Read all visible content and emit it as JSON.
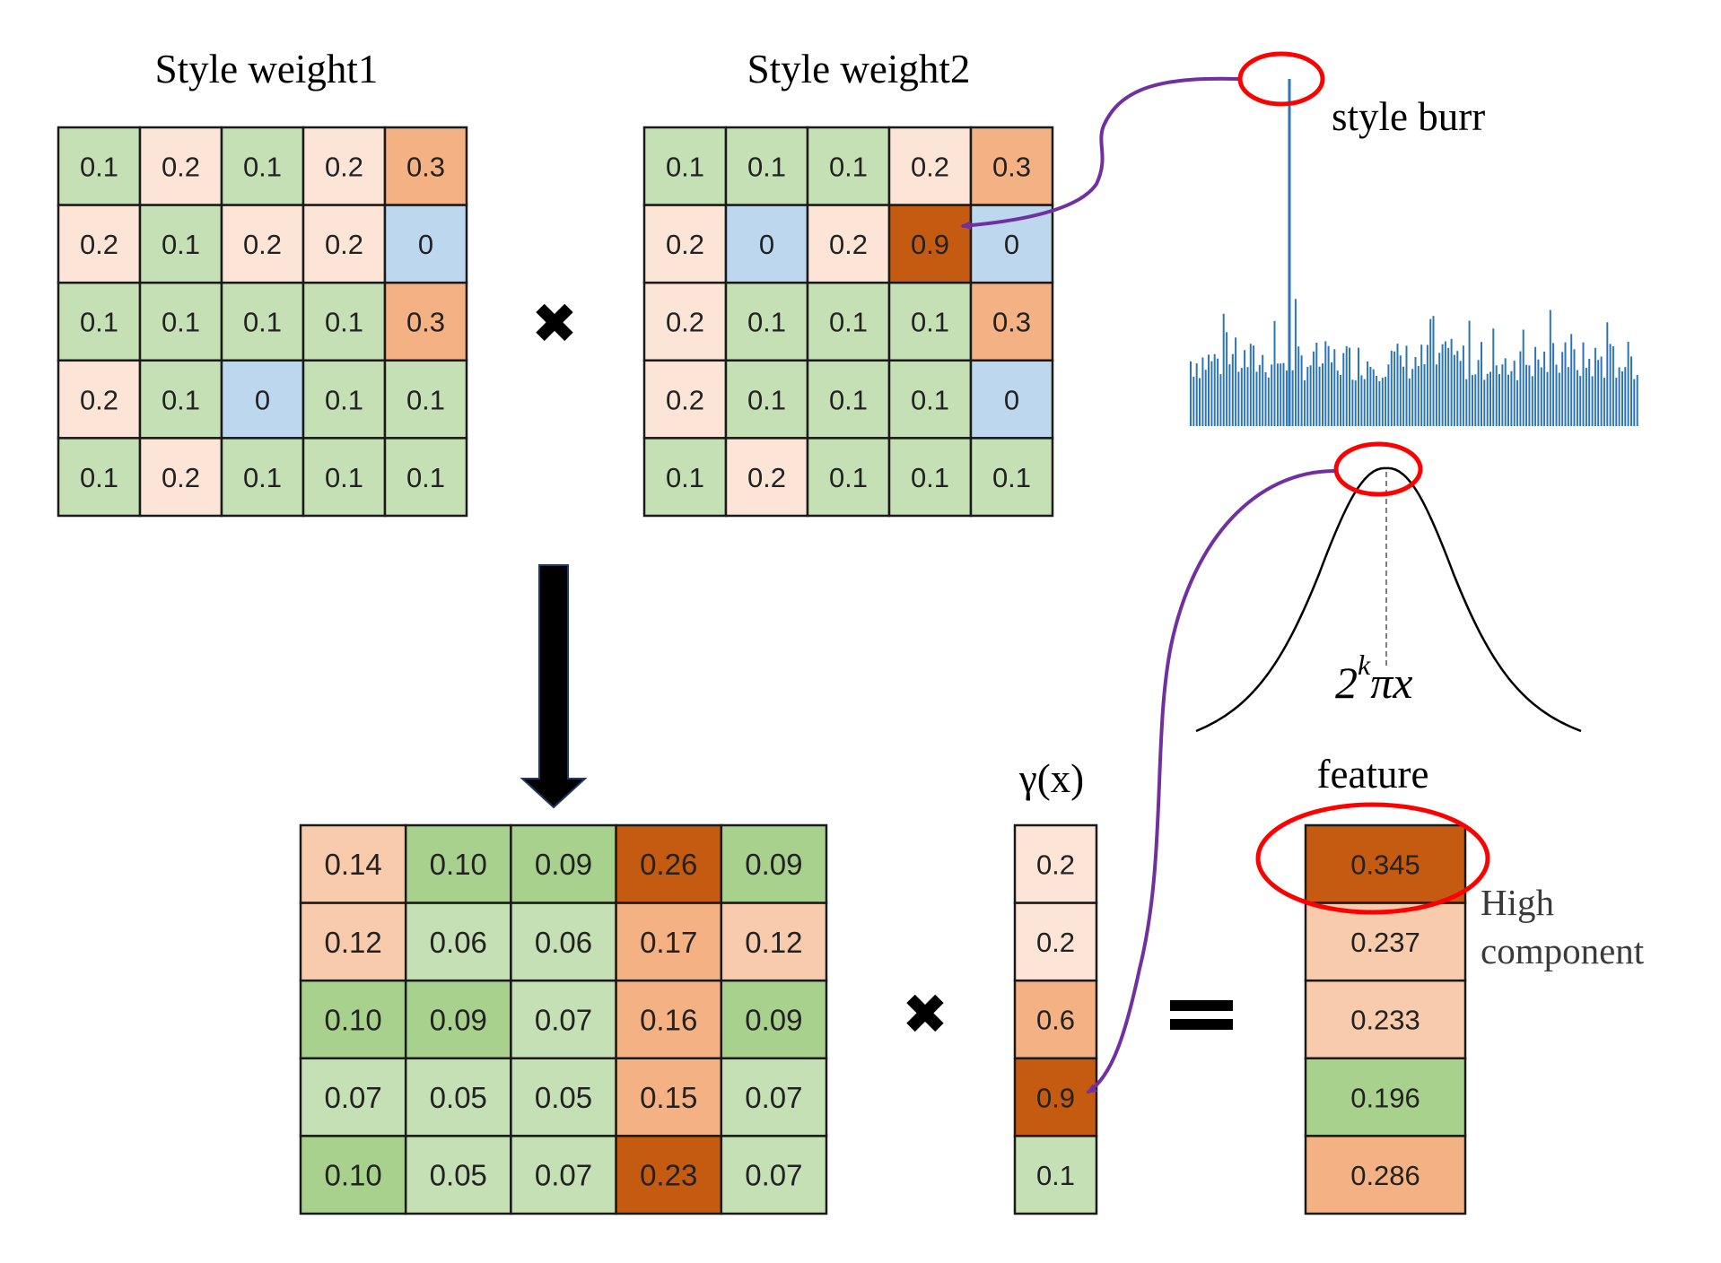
{
  "titles": {
    "weight1": "Style weight1",
    "weight2": "Style weight2",
    "burr": "style burr",
    "gamma": "γ(x)",
    "feature": "feature",
    "high": "High",
    "component": "component"
  },
  "formula": {
    "base": "2",
    "exp": "k",
    "rest": "πx"
  },
  "operators": {
    "times": "✖"
  },
  "colors": {
    "green": "#c5e0b4",
    "green_dark": "#a9d18e",
    "peach": "#fce4d6",
    "peach_mid": "#f8cbad",
    "orange": "#f4b183",
    "brown": "#c55a11",
    "blue": "#bdd7ee",
    "grid_line": "#1a1a1a",
    "bar": "#2e75b6",
    "highlight": "#ff0000",
    "connector": "#7030a0"
  },
  "matrices": {
    "weight1": [
      [
        {
          "v": "0.1",
          "c": "green"
        },
        {
          "v": "0.2",
          "c": "peach"
        },
        {
          "v": "0.1",
          "c": "green"
        },
        {
          "v": "0.2",
          "c": "peach"
        },
        {
          "v": "0.3",
          "c": "orange"
        }
      ],
      [
        {
          "v": "0.2",
          "c": "peach"
        },
        {
          "v": "0.1",
          "c": "green"
        },
        {
          "v": "0.2",
          "c": "peach"
        },
        {
          "v": "0.2",
          "c": "peach"
        },
        {
          "v": "0",
          "c": "blue"
        }
      ],
      [
        {
          "v": "0.1",
          "c": "green"
        },
        {
          "v": "0.1",
          "c": "green"
        },
        {
          "v": "0.1",
          "c": "green"
        },
        {
          "v": "0.1",
          "c": "green"
        },
        {
          "v": "0.3",
          "c": "orange"
        }
      ],
      [
        {
          "v": "0.2",
          "c": "peach"
        },
        {
          "v": "0.1",
          "c": "green"
        },
        {
          "v": "0",
          "c": "blue"
        },
        {
          "v": "0.1",
          "c": "green"
        },
        {
          "v": "0.1",
          "c": "green"
        }
      ],
      [
        {
          "v": "0.1",
          "c": "green"
        },
        {
          "v": "0.2",
          "c": "peach"
        },
        {
          "v": "0.1",
          "c": "green"
        },
        {
          "v": "0.1",
          "c": "green"
        },
        {
          "v": "0.1",
          "c": "green"
        }
      ]
    ],
    "weight2": [
      [
        {
          "v": "0.1",
          "c": "green"
        },
        {
          "v": "0.1",
          "c": "green"
        },
        {
          "v": "0.1",
          "c": "green"
        },
        {
          "v": "0.2",
          "c": "peach"
        },
        {
          "v": "0.3",
          "c": "orange"
        }
      ],
      [
        {
          "v": "0.2",
          "c": "peach"
        },
        {
          "v": "0",
          "c": "blue"
        },
        {
          "v": "0.2",
          "c": "peach"
        },
        {
          "v": "0.9",
          "c": "brown"
        },
        {
          "v": "0",
          "c": "blue"
        }
      ],
      [
        {
          "v": "0.2",
          "c": "peach"
        },
        {
          "v": "0.1",
          "c": "green"
        },
        {
          "v": "0.1",
          "c": "green"
        },
        {
          "v": "0.1",
          "c": "green"
        },
        {
          "v": "0.3",
          "c": "orange"
        }
      ],
      [
        {
          "v": "0.2",
          "c": "peach"
        },
        {
          "v": "0.1",
          "c": "green"
        },
        {
          "v": "0.1",
          "c": "green"
        },
        {
          "v": "0.1",
          "c": "green"
        },
        {
          "v": "0",
          "c": "blue"
        }
      ],
      [
        {
          "v": "0.1",
          "c": "green"
        },
        {
          "v": "0.2",
          "c": "peach"
        },
        {
          "v": "0.1",
          "c": "green"
        },
        {
          "v": "0.1",
          "c": "green"
        },
        {
          "v": "0.1",
          "c": "green"
        }
      ]
    ],
    "product": [
      [
        {
          "v": "0.14",
          "c": "peach_mid"
        },
        {
          "v": "0.10",
          "c": "green_dark"
        },
        {
          "v": "0.09",
          "c": "green_dark"
        },
        {
          "v": "0.26",
          "c": "brown"
        },
        {
          "v": "0.09",
          "c": "green_dark"
        }
      ],
      [
        {
          "v": "0.12",
          "c": "peach_mid"
        },
        {
          "v": "0.06",
          "c": "green"
        },
        {
          "v": "0.06",
          "c": "green"
        },
        {
          "v": "0.17",
          "c": "orange"
        },
        {
          "v": "0.12",
          "c": "peach_mid"
        }
      ],
      [
        {
          "v": "0.10",
          "c": "green_dark"
        },
        {
          "v": "0.09",
          "c": "green_dark"
        },
        {
          "v": "0.07",
          "c": "green"
        },
        {
          "v": "0.16",
          "c": "orange"
        },
        {
          "v": "0.09",
          "c": "green_dark"
        }
      ],
      [
        {
          "v": "0.07",
          "c": "green"
        },
        {
          "v": "0.05",
          "c": "green"
        },
        {
          "v": "0.05",
          "c": "green"
        },
        {
          "v": "0.15",
          "c": "orange"
        },
        {
          "v": "0.07",
          "c": "green"
        }
      ],
      [
        {
          "v": "0.10",
          "c": "green_dark"
        },
        {
          "v": "0.05",
          "c": "green"
        },
        {
          "v": "0.07",
          "c": "green"
        },
        {
          "v": "0.23",
          "c": "brown"
        },
        {
          "v": "0.07",
          "c": "green"
        }
      ]
    ],
    "gamma": [
      [
        {
          "v": "0.2",
          "c": "peach"
        }
      ],
      [
        {
          "v": "0.2",
          "c": "peach"
        }
      ],
      [
        {
          "v": "0.6",
          "c": "orange"
        }
      ],
      [
        {
          "v": "0.9",
          "c": "brown"
        }
      ],
      [
        {
          "v": "0.1",
          "c": "green"
        }
      ]
    ],
    "feature": [
      [
        {
          "v": "0.345",
          "c": "brown"
        }
      ],
      [
        {
          "v": "0.237",
          "c": "peach_mid"
        }
      ],
      [
        {
          "v": "0.233",
          "c": "peach_mid"
        }
      ],
      [
        {
          "v": "0.196",
          "c": "green_dark"
        }
      ],
      [
        {
          "v": "0.286",
          "c": "orange"
        }
      ]
    ]
  }
}
